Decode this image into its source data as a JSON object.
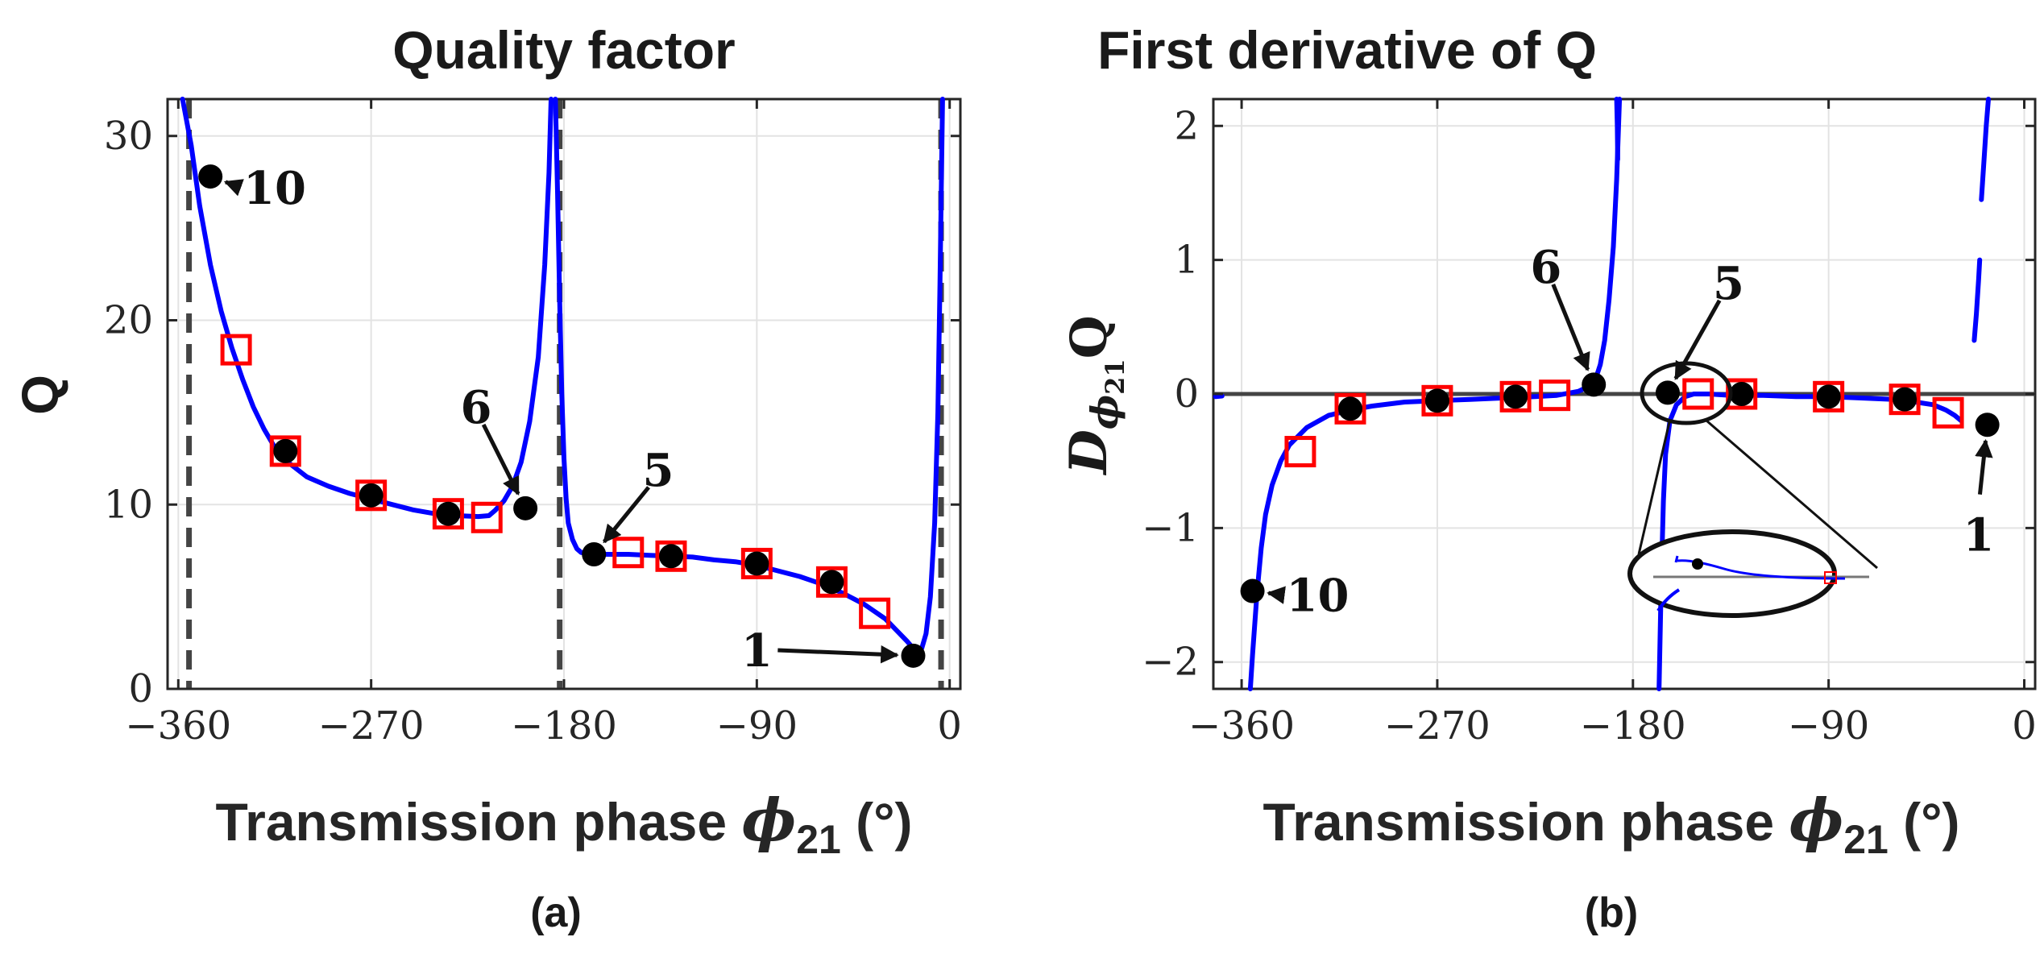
{
  "chart_data": [
    {
      "id": "a",
      "type": "line",
      "title": "Quality factor",
      "xlabel": "Transmission phase",
      "xlabel_symbol": "ϕ",
      "xlabel_subscript": "21",
      "xlabel_unit": "(°)",
      "ylabel": "Q",
      "panel_label": "(a)",
      "xlim": [
        -365,
        5
      ],
      "ylim": [
        0,
        32
      ],
      "xticks": [
        -360,
        -270,
        -180,
        -90,
        0
      ],
      "xtick_labels": [
        "−360",
        "−270",
        "−180",
        "−90",
        "0"
      ],
      "yticks": [
        0,
        10,
        20,
        30
      ],
      "ytick_labels": [
        "0",
        "10",
        "20",
        "30"
      ],
      "grid": true,
      "curve_color": "#0000ff",
      "asymptotes": [
        -355,
        -182,
        -4
      ],
      "series": [
        {
          "name": "Q curve",
          "segments": [
            [
              [
                -358,
                33
              ],
              [
                -354,
                29.5
              ],
              [
                -350,
                26.2
              ],
              [
                -345,
                23
              ],
              [
                -340,
                20.5
              ],
              [
                -335,
                18.5
              ],
              [
                -330,
                16.8
              ],
              [
                -325,
                15.3
              ],
              [
                -320,
                14.1
              ],
              [
                -315,
                13.1
              ],
              [
                -310,
                12.4
              ],
              [
                -300,
                11.5
              ],
              [
                -290,
                11
              ],
              [
                -280,
                10.6
              ],
              [
                -270,
                10.3
              ],
              [
                -260,
                10
              ],
              [
                -250,
                9.7
              ],
              [
                -240,
                9.5
              ],
              [
                -230,
                9.4
              ],
              [
                -220,
                9.35
              ],
              [
                -215,
                9.4
              ],
              [
                -212,
                9.7
              ],
              [
                -208,
                10.2
              ],
              [
                -204,
                11
              ],
              [
                -200,
                12.3
              ],
              [
                -196,
                14.5
              ],
              [
                -192,
                18
              ],
              [
                -189,
                23
              ],
              [
                -187,
                28
              ],
              [
                -186,
                33
              ]
            ],
            [
              [
                -184,
                33
              ],
              [
                -183,
                27
              ],
              [
                -182,
                21
              ],
              [
                -181,
                16
              ],
              [
                -180,
                12.5
              ],
              [
                -179,
                10.3
              ],
              [
                -178,
                9
              ],
              [
                -176,
                8.1
              ],
              [
                -174,
                7.6
              ],
              [
                -172,
                7.4
              ],
              [
                -168,
                7.3
              ],
              [
                -160,
                7.3
              ],
              [
                -150,
                7.3
              ],
              [
                -140,
                7.25
              ],
              [
                -130,
                7.2
              ],
              [
                -120,
                7.15
              ],
              [
                -110,
                7
              ],
              [
                -100,
                6.9
              ],
              [
                -90,
                6.7
              ],
              [
                -80,
                6.4
              ],
              [
                -70,
                6.1
              ],
              [
                -60,
                5.7
              ],
              [
                -50,
                5.2
              ],
              [
                -40,
                4.6
              ],
              [
                -30,
                3.8
              ],
              [
                -25,
                3.2
              ],
              [
                -20,
                2.6
              ],
              [
                -17,
                2.2
              ],
              [
                -15,
                2.0
              ],
              [
                -13,
                2.2
              ],
              [
                -11,
                3
              ],
              [
                -9,
                5
              ],
              [
                -7,
                9
              ],
              [
                -5.5,
                15
              ],
              [
                -4.5,
                22
              ],
              [
                -3.8,
                28
              ],
              [
                -3.3,
                33
              ]
            ]
          ]
        }
      ],
      "markers_filled": [
        {
          "x": -345,
          "y": 27.8
        },
        {
          "x": -310,
          "y": 12.9
        },
        {
          "x": -270,
          "y": 10.5
        },
        {
          "x": -234,
          "y": 9.5
        },
        {
          "x": -198,
          "y": 9.8
        },
        {
          "x": -166,
          "y": 7.3
        },
        {
          "x": -130,
          "y": 7.2
        },
        {
          "x": -90,
          "y": 6.8
        },
        {
          "x": -55,
          "y": 5.8
        },
        {
          "x": -17,
          "y": 1.8
        }
      ],
      "markers_square": [
        {
          "x": -333,
          "y": 18.4
        },
        {
          "x": -310,
          "y": 12.9
        },
        {
          "x": -270,
          "y": 10.5
        },
        {
          "x": -234,
          "y": 9.5
        },
        {
          "x": -216,
          "y": 9.3
        },
        {
          "x": -150,
          "y": 7.4
        },
        {
          "x": -130,
          "y": 7.2
        },
        {
          "x": -90,
          "y": 6.8
        },
        {
          "x": -55,
          "y": 5.8
        },
        {
          "x": -35,
          "y": 4.1
        }
      ],
      "annotations": [
        {
          "text": "10",
          "point": [
            -345,
            27.8
          ],
          "label_at": [
            -315,
            27.2
          ]
        },
        {
          "text": "6",
          "point": [
            -198,
            9.8
          ],
          "label_at": [
            -221,
            15.3
          ]
        },
        {
          "text": "5",
          "point": [
            -166,
            7.3
          ],
          "label_at": [
            -136,
            11.9
          ]
        },
        {
          "text": "1",
          "point": [
            -17,
            1.8
          ],
          "label_at": [
            -90,
            2.1
          ]
        }
      ]
    },
    {
      "id": "b",
      "type": "line",
      "title": "First derivative of Q",
      "xlabel": "Transmission phase",
      "xlabel_symbol": "ϕ",
      "xlabel_subscript": "21",
      "xlabel_unit": "(°)",
      "ylabel": "D",
      "ylabel_symbol": "ϕ",
      "ylabel_subscript": "21",
      "ylabel_suffix": "Q",
      "panel_label": "(b)",
      "xlim": [
        -373,
        5
      ],
      "ylim": [
        -2.2,
        2.2
      ],
      "xticks": [
        -360,
        -270,
        -180,
        -90,
        0
      ],
      "xtick_labels": [
        "−360",
        "−270",
        "−180",
        "−90",
        "0"
      ],
      "yticks": [
        -2,
        -1,
        0,
        1,
        2
      ],
      "ytick_labels": [
        "−2",
        "−1",
        "0",
        "1",
        "2"
      ],
      "grid": true,
      "curve_color": "#0000ff",
      "zero_line": true,
      "series": [
        {
          "name": "dQ/dϕ21 curve",
          "segments": [
            [
              [
                -356,
                -2.25
              ],
              [
                -355,
                -1.95
              ],
              [
                -353,
                -1.5
              ],
              [
                -351,
                -1.15
              ],
              [
                -349,
                -0.9
              ],
              [
                -346,
                -0.68
              ],
              [
                -342,
                -0.5
              ],
              [
                -338,
                -0.38
              ],
              [
                -330,
                -0.25
              ],
              [
                -320,
                -0.16
              ],
              [
                -310,
                -0.12
              ],
              [
                -300,
                -0.09
              ],
              [
                -285,
                -0.06
              ],
              [
                -270,
                -0.05
              ],
              [
                -255,
                -0.04
              ],
              [
                -240,
                -0.03
              ],
              [
                -225,
                -0.02
              ],
              [
                -215,
                -0.01
              ],
              [
                -205,
                0.02
              ],
              [
                -200,
                0.06
              ],
              [
                -197,
                0.12
              ],
              [
                -195,
                0.22
              ],
              [
                -193,
                0.4
              ],
              [
                -191,
                0.7
              ],
              [
                -189,
                1.1
              ],
              [
                -187.5,
                1.6
              ],
              [
                -186.2,
                2.25
              ]
            ],
            [
              [
                -187.5,
                2.2
              ],
              [
                -187.2,
                2.0
              ],
              [
                -187.0,
                1.75
              ]
            ],
            [
              [
                -168,
                -2.25
              ],
              [
                -167,
                -1.4
              ],
              [
                -166,
                -0.8
              ],
              [
                -165,
                -0.45
              ],
              [
                -163,
                -0.2
              ],
              [
                -160,
                -0.08
              ],
              [
                -156,
                -0.02
              ],
              [
                -152,
                0.0
              ],
              [
                -145,
                0.0
              ],
              [
                -135,
                -0.01
              ],
              [
                -120,
                -0.01
              ],
              [
                -105,
                -0.02
              ],
              [
                -90,
                -0.02
              ],
              [
                -75,
                -0.03
              ],
              [
                -60,
                -0.04
              ],
              [
                -50,
                -0.06
              ],
              [
                -42,
                -0.08
              ],
              [
                -36,
                -0.12
              ],
              [
                -32,
                -0.16
              ],
              [
                -29,
                -0.2
              ]
            ],
            [
              [
                -23,
                0.4
              ],
              [
                -22,
                0.6
              ],
              [
                -21,
                0.85
              ],
              [
                -20.5,
                1.0
              ]
            ],
            [
              [
                -19.7,
                1.45
              ],
              [
                -18.5,
                1.75
              ],
              [
                -17.5,
                2.0
              ],
              [
                -16.5,
                2.25
              ]
            ],
            [
              [
                -372,
                -0.02
              ],
              [
                -369,
                -0.015
              ]
            ]
          ]
        }
      ],
      "markers_filled": [
        {
          "x": -355,
          "y": -1.47
        },
        {
          "x": -310,
          "y": -0.11
        },
        {
          "x": -270,
          "y": -0.05
        },
        {
          "x": -234,
          "y": -0.02
        },
        {
          "x": -198,
          "y": 0.07
        },
        {
          "x": -164,
          "y": 0.01
        },
        {
          "x": -130,
          "y": 0.0
        },
        {
          "x": -90,
          "y": -0.02
        },
        {
          "x": -55,
          "y": -0.04
        },
        {
          "x": -17,
          "y": -0.23
        }
      ],
      "markers_square": [
        {
          "x": -333,
          "y": -0.43
        },
        {
          "x": -310,
          "y": -0.11
        },
        {
          "x": -270,
          "y": -0.05
        },
        {
          "x": -234,
          "y": -0.02
        },
        {
          "x": -216,
          "y": -0.01
        },
        {
          "x": -150,
          "y": 0.0
        },
        {
          "x": -130,
          "y": 0.0
        },
        {
          "x": -90,
          "y": -0.02
        },
        {
          "x": -55,
          "y": -0.04
        },
        {
          "x": -35,
          "y": -0.14
        }
      ],
      "annotations": [
        {
          "text": "10",
          "point": [
            -355,
            -1.47
          ],
          "label_at": [
            -325,
            -1.5
          ]
        },
        {
          "text": "6",
          "point": [
            -198,
            0.07
          ],
          "label_at": [
            -220,
            0.95
          ]
        },
        {
          "text": "5",
          "point": [
            -164,
            0.01
          ],
          "label_at": [
            -136,
            0.83
          ]
        },
        {
          "text": "1",
          "point": [
            -17,
            -0.23
          ],
          "label_at": [
            -21,
            -1.05
          ]
        }
      ],
      "inset": {
        "description": "zoom ellipse around point 5",
        "source_center": [
          -152,
          -0.01
        ]
      }
    }
  ]
}
